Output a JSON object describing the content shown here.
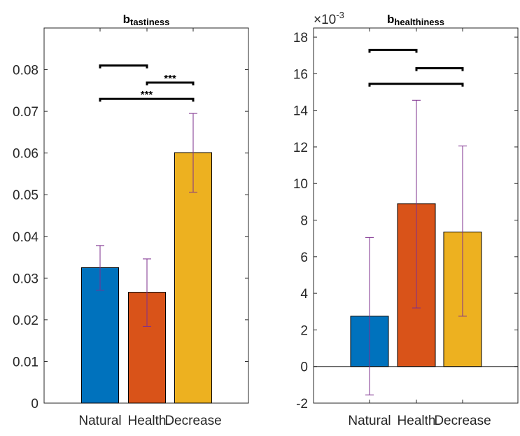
{
  "chart_data": [
    {
      "type": "bar",
      "title_main": "b",
      "title_sub": "tastiness",
      "categories": [
        "Natural",
        "Health",
        "Decrease"
      ],
      "values": [
        0.0325,
        0.0266,
        0.0601
      ],
      "error_low": [
        0.0271,
        0.0184,
        0.0506
      ],
      "error_high": [
        0.0378,
        0.0346,
        0.0695
      ],
      "colors": [
        "#0072BD",
        "#D95319",
        "#EDB120"
      ],
      "error_color": "#7E2F8E",
      "ylim": [
        0,
        0.09
      ],
      "yticks": [
        0,
        0.01,
        0.02,
        0.03,
        0.04,
        0.05,
        0.06,
        0.07,
        0.08
      ],
      "ytick_labels": [
        "0",
        "0.01",
        "0.02",
        "0.03",
        "0.04",
        "0.05",
        "0.06",
        "0.07",
        "0.08"
      ],
      "brackets": [
        {
          "from": "Natural",
          "to": "Health",
          "y": 0.081,
          "label": ""
        },
        {
          "from": "Health",
          "to": "Decrease",
          "y": 0.0769,
          "label": "***"
        },
        {
          "from": "Natural",
          "to": "Decrease",
          "y": 0.073,
          "label": "***"
        }
      ]
    },
    {
      "type": "bar",
      "title_main": "b",
      "title_sub": "healthiness",
      "exponent_base": "×10",
      "exponent_power": "-3",
      "categories": [
        "Natural",
        "Health",
        "Decrease"
      ],
      "values": [
        2.75,
        8.9,
        7.35
      ],
      "error_low": [
        -1.55,
        3.2,
        2.75
      ],
      "error_high": [
        7.05,
        14.55,
        12.05
      ],
      "colors": [
        "#0072BD",
        "#D95319",
        "#EDB120"
      ],
      "error_color": "#7E2F8E",
      "ylim": [
        -2,
        18.5
      ],
      "yticks": [
        -2,
        0,
        2,
        4,
        6,
        8,
        10,
        12,
        14,
        16,
        18
      ],
      "ytick_labels": [
        "-2",
        "0",
        "2",
        "4",
        "6",
        "8",
        "10",
        "12",
        "14",
        "16",
        "18"
      ],
      "zero_line": true,
      "brackets": [
        {
          "from": "Natural",
          "to": "Health",
          "y": 17.3,
          "label": ""
        },
        {
          "from": "Health",
          "to": "Decrease",
          "y": 16.3,
          "label": ""
        },
        {
          "from": "Natural",
          "to": "Decrease",
          "y": 15.45,
          "label": ""
        }
      ]
    }
  ]
}
